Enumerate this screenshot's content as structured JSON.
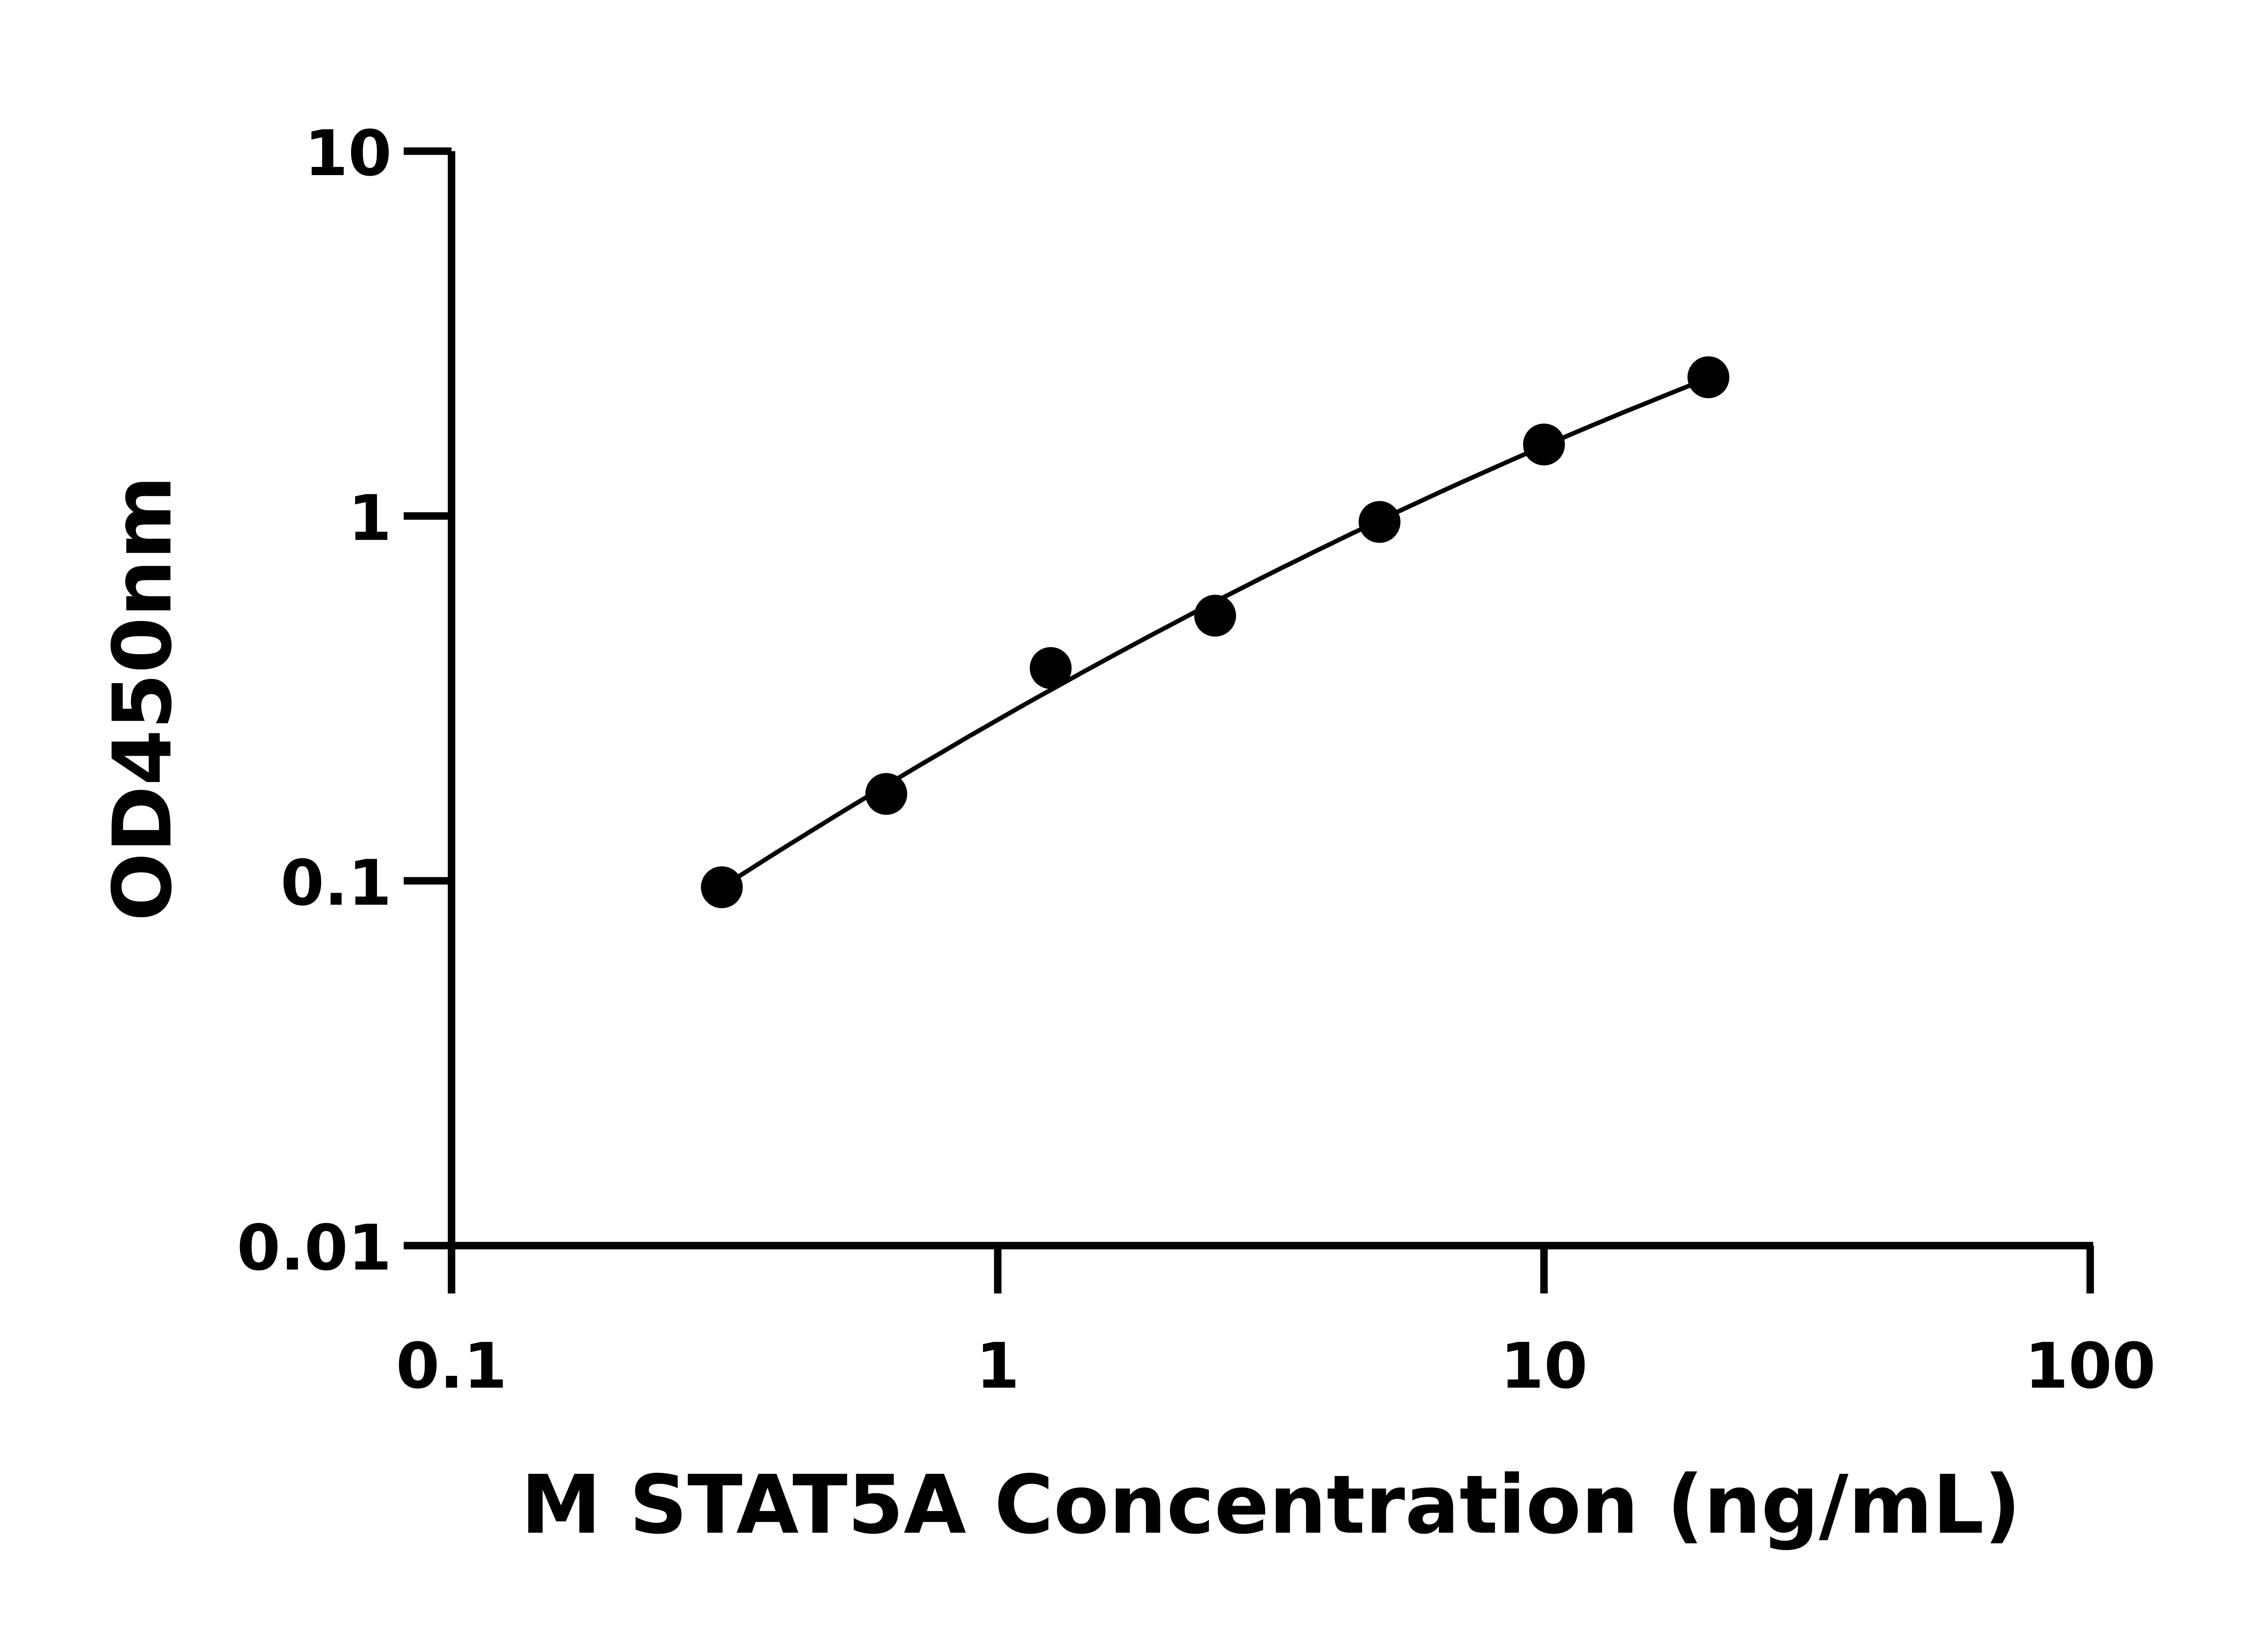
{
  "chart_data": {
    "type": "scatter",
    "title": "",
    "xlabel": "M STAT5A Concentration (ng/mL)",
    "ylabel": "OD450nm",
    "x_scale": "log",
    "y_scale": "log",
    "xlim": [
      0.1,
      100
    ],
    "ylim": [
      0.01,
      10
    ],
    "x_ticks": [
      "0.1",
      "1",
      "10",
      "100"
    ],
    "y_ticks": [
      "0.01",
      "0.1",
      "1",
      "10"
    ],
    "grid": false,
    "legend": "none",
    "fit_line": true,
    "marker_color": "#000000",
    "series": [
      {
        "x": [
          0.3125,
          0.625,
          1.25,
          2.5,
          5,
          10,
          20
        ],
        "y": [
          0.096,
          0.173,
          0.383,
          0.533,
          0.963,
          1.57,
          2.4
        ]
      }
    ]
  }
}
